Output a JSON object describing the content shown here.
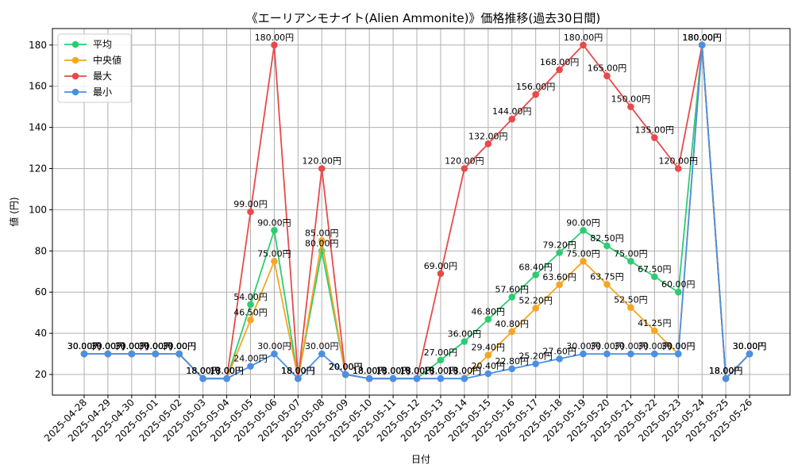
{
  "chart_data": {
    "type": "line",
    "title": "《エーリアンモナイト(Alien Ammonite)》価格推移(過去30日間)",
    "xlabel": "日付",
    "ylabel": "値 (円)",
    "ylim": [
      10,
      188
    ],
    "yticks": [
      20,
      40,
      60,
      80,
      100,
      120,
      140,
      160,
      180
    ],
    "grid": true,
    "legend_position": "top-left",
    "value_suffix": "円",
    "categories": [
      "2025-04-28",
      "2025-04-29",
      "2025-04-30",
      "2025-05-01",
      "2025-05-02",
      "2025-05-03",
      "2025-05-04",
      "2025-05-05",
      "2025-05-06",
      "2025-05-07",
      "2025-05-08",
      "2025-05-09",
      "2025-05-10",
      "2025-05-11",
      "2025-05-12",
      "2025-05-13",
      "2025-05-14",
      "2025-05-15",
      "2025-05-16",
      "2025-05-17",
      "2025-05-18",
      "2025-05-19",
      "2025-05-20",
      "2025-05-21",
      "2025-05-22",
      "2025-05-23",
      "2025-05-24",
      "2025-05-25",
      "2025-05-26"
    ],
    "series": [
      {
        "name": "平均",
        "color": "#2ecc71",
        "values": [
          30,
          30,
          30,
          30,
          30,
          18,
          18,
          54,
          90,
          18,
          80,
          20,
          18,
          18,
          18,
          27,
          36,
          46.8,
          57.6,
          68.4,
          79.2,
          90,
          82.5,
          75,
          67.5,
          60,
          180,
          18,
          30
        ]
      },
      {
        "name": "中央値",
        "color": "#f5a623",
        "values": [
          30,
          30,
          30,
          30,
          30,
          18,
          18,
          46.5,
          75,
          18,
          85,
          20,
          18,
          18,
          18,
          18,
          18,
          29.4,
          40.8,
          52.2,
          63.6,
          75,
          63.75,
          52.5,
          41.25,
          30,
          180,
          18,
          30
        ]
      },
      {
        "name": "最大",
        "color": "#e84a4a",
        "values": [
          30,
          30,
          30,
          30,
          30,
          18,
          18,
          99,
          180,
          18,
          120,
          20,
          18,
          18,
          18,
          69,
          120,
          132,
          144,
          156,
          168,
          180,
          165,
          150,
          135,
          120,
          180,
          18,
          30
        ]
      },
      {
        "name": "最小",
        "color": "#4a90e2",
        "values": [
          30,
          30,
          30,
          30,
          30,
          18,
          18,
          24,
          30,
          18,
          30,
          20,
          18,
          18,
          18,
          18,
          18,
          20.4,
          22.8,
          25.2,
          27.6,
          30,
          30,
          30,
          30,
          30,
          180,
          18,
          30
        ]
      }
    ]
  }
}
